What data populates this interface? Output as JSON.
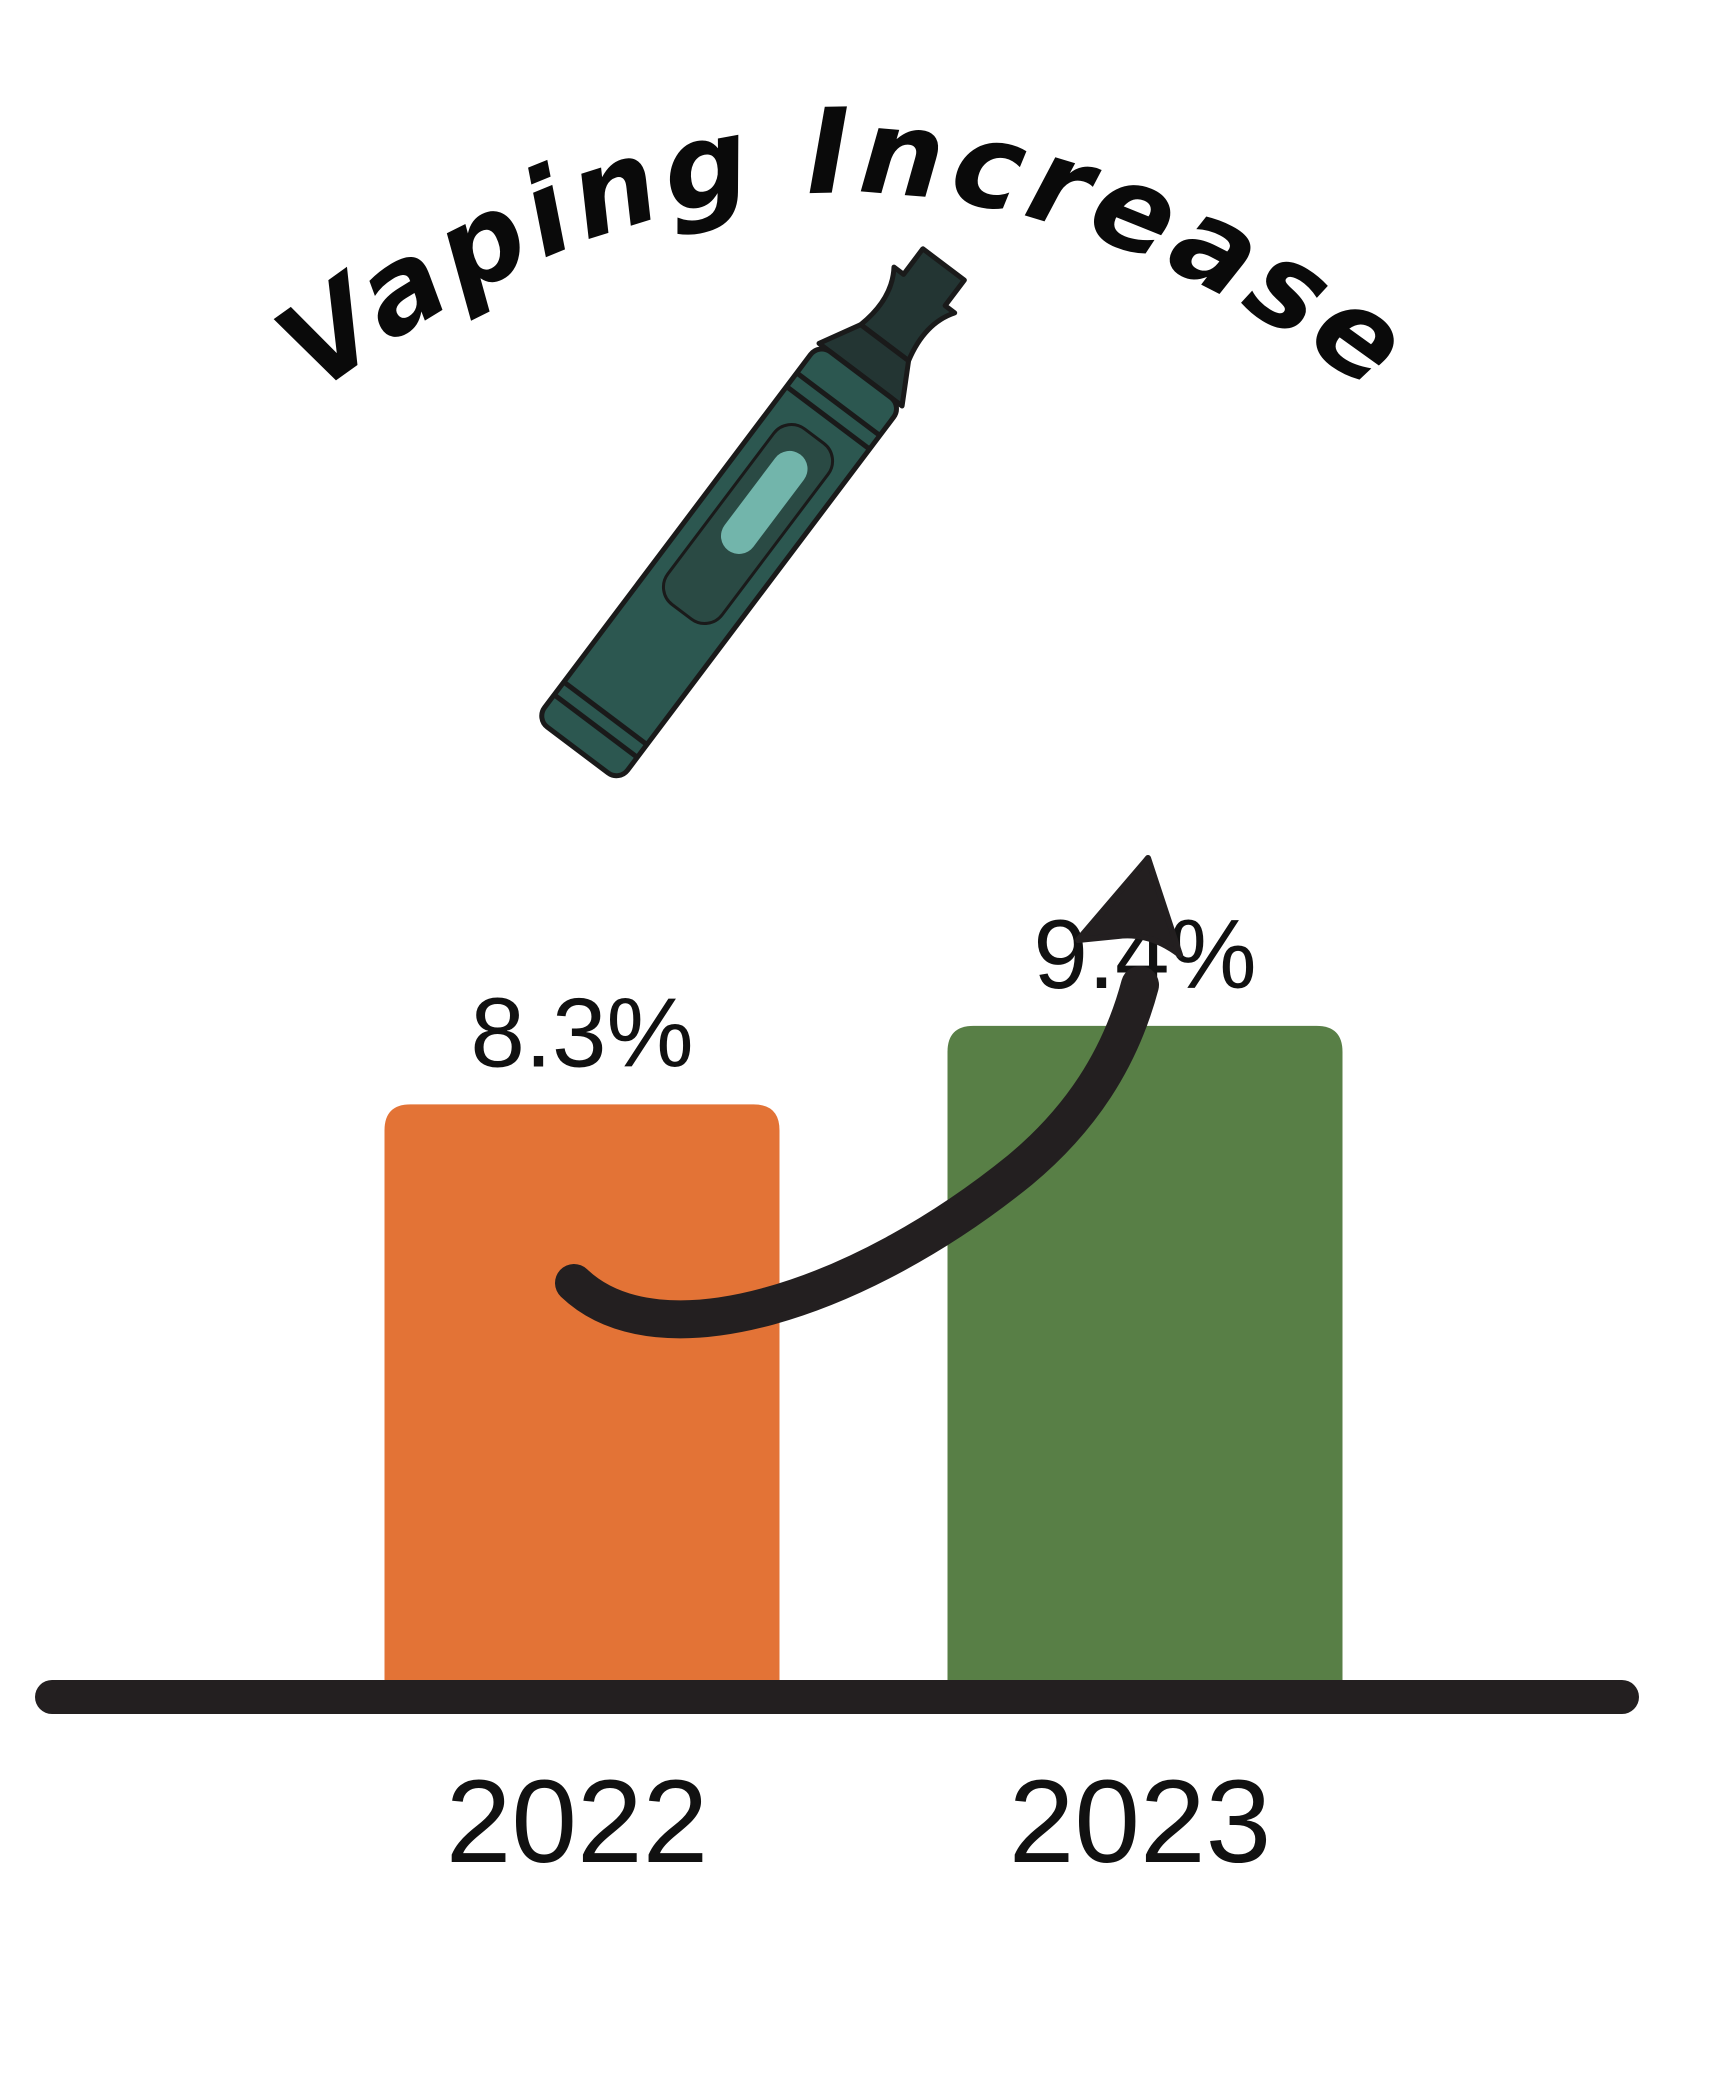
{
  "chart_data": {
    "type": "bar",
    "title": "Vaping Increase",
    "categories": [
      "2022",
      "2023"
    ],
    "values": [
      8.3,
      9.4
    ],
    "value_labels": [
      "8.3%",
      "9.4%"
    ],
    "unit": "%",
    "colors": [
      "#e37336",
      "#587f46"
    ],
    "trend_arrow": "up",
    "icon": "vape-pen-icon",
    "axis_color": "#231f20"
  }
}
